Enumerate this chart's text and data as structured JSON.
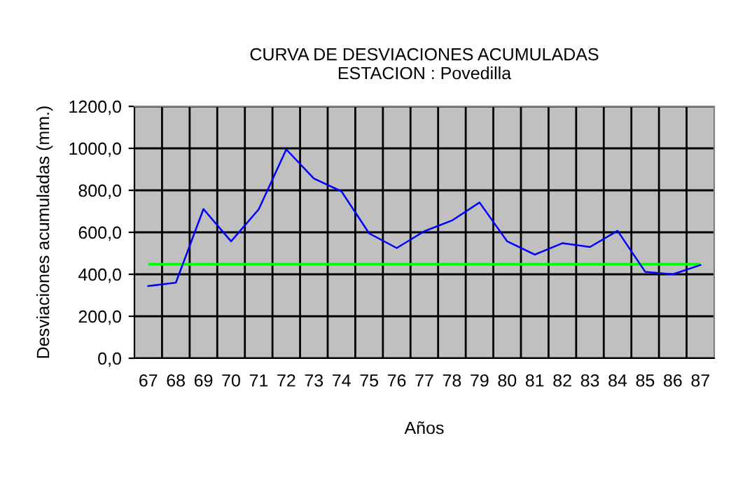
{
  "chart_data": {
    "type": "line",
    "title": "CURVA DE DESVIACIONES ACUMULADAS\nESTACION : Povedilla",
    "xlabel": "Años",
    "ylabel": "Desviaciones acumuladas (mm.)",
    "categories": [
      "67",
      "68",
      "69",
      "70",
      "71",
      "72",
      "73",
      "74",
      "75",
      "76",
      "77",
      "78",
      "79",
      "80",
      "81",
      "82",
      "83",
      "84",
      "85",
      "86",
      "87"
    ],
    "series": [
      {
        "color": "#0000ff",
        "values": [
          344,
          360,
          711,
          557,
          709,
          995,
          856,
          795,
          595,
          525,
          605,
          656,
          742,
          557,
          494,
          548,
          530,
          607,
          412,
          400,
          444
        ]
      }
    ],
    "ref_lines": [
      {
        "axis": "y",
        "value": 448,
        "color": "#00ff00"
      }
    ],
    "ylim": [
      0,
      1200
    ],
    "yticks": [
      {
        "value": 0,
        "label": "0,0"
      },
      {
        "value": 200,
        "label": "200,0"
      },
      {
        "value": 400,
        "label": "400,0"
      },
      {
        "value": 600,
        "label": "600,0"
      },
      {
        "value": 800,
        "label": "800,0"
      },
      {
        "value": 1000,
        "label": "1000,0"
      },
      {
        "value": 1200,
        "label": "1200,0"
      }
    ],
    "grid": true,
    "marker": "none",
    "line_style": "solid"
  }
}
